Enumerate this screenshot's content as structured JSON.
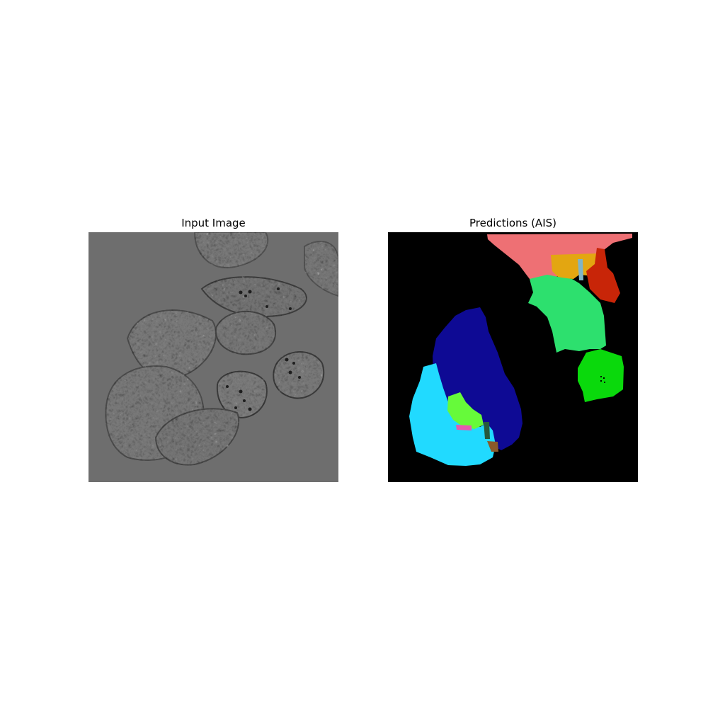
{
  "figure": {
    "left_title": "Input Image",
    "right_title": "Predictions (AIS)"
  },
  "input_image": {
    "description_kind": "grayscale microscopy",
    "background_color": "#6f6f6f"
  },
  "prediction_mask": {
    "background_color": "#000000",
    "segment_colors": [
      "#ee7074",
      "#e3a611",
      "#c82508",
      "#7fb4c7",
      "#2de06e",
      "#0ad90c",
      "#0e0a94",
      "#21daff",
      "#66fa3a",
      "#e65ab0",
      "#265a3c",
      "#8a5a2a"
    ]
  }
}
